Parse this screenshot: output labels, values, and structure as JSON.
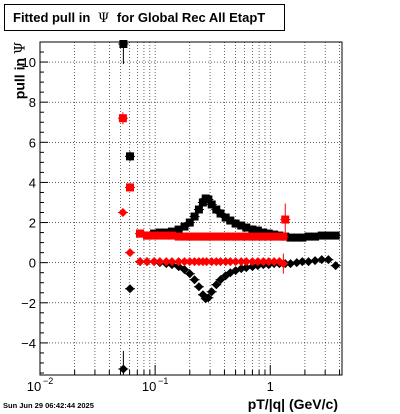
{
  "title": {
    "prefix": "Fitted pull in",
    "symbol": "Ψ",
    "suffix": "for Global Rec All EtapT"
  },
  "axes": {
    "ylabel_prefix": "pull in",
    "ylabel_symbol": "Ψ",
    "xlabel": "pT/|q| (GeV/c)"
  },
  "timestamp": "Sun Jun 29 06:42:44 2025",
  "colors": {
    "series_black": "#000000",
    "series_red": "#ff0000",
    "grid": "#000000"
  },
  "chart_data": {
    "type": "scatter",
    "xscale": "log",
    "xlim": [
      0.01,
      4.2
    ],
    "ylim": [
      -5.6,
      11.0
    ],
    "grid": true,
    "ytick_labels": [
      "−4",
      "−2",
      "0",
      "2",
      "4",
      "6",
      "8",
      "10"
    ],
    "ytick_values": [
      -4,
      -2,
      0,
      2,
      4,
      6,
      8,
      10
    ],
    "xtick_labels": [
      {
        "base": "10",
        "exp": "−2",
        "value": 0.01
      },
      {
        "base": "10",
        "exp": "−1",
        "value": 0.1
      },
      {
        "base": "1",
        "exp": "",
        "value": 1
      }
    ],
    "series": [
      {
        "color": "#000000",
        "marker": "square",
        "points": [
          [
            0.053,
            10.9,
            1.0
          ],
          [
            0.0605,
            5.3,
            0.25
          ],
          [
            0.074,
            1.45,
            0.15
          ],
          [
            0.085,
            1.35,
            0.1
          ],
          [
            0.098,
            1.45,
            0.08
          ],
          [
            0.11,
            1.5,
            0.07
          ],
          [
            0.125,
            1.5,
            0.06
          ],
          [
            0.14,
            1.55,
            0.06
          ],
          [
            0.16,
            1.65,
            0.06
          ],
          [
            0.18,
            1.8,
            0.06
          ],
          [
            0.2,
            2.0,
            0.07
          ],
          [
            0.22,
            2.3,
            0.08
          ],
          [
            0.24,
            2.65,
            0.09
          ],
          [
            0.26,
            3.0,
            0.1
          ],
          [
            0.275,
            3.2,
            0.12
          ],
          [
            0.29,
            3.15,
            0.12
          ],
          [
            0.31,
            2.9,
            0.1
          ],
          [
            0.34,
            2.65,
            0.08
          ],
          [
            0.37,
            2.45,
            0.07
          ],
          [
            0.41,
            2.25,
            0.06
          ],
          [
            0.45,
            2.1,
            0.05
          ],
          [
            0.5,
            1.95,
            0.05
          ],
          [
            0.56,
            1.85,
            0.05
          ],
          [
            0.62,
            1.75,
            0.05
          ],
          [
            0.7,
            1.65,
            0.05
          ],
          [
            0.78,
            1.6,
            0.05
          ],
          [
            0.87,
            1.5,
            0.05
          ],
          [
            0.97,
            1.45,
            0.05
          ],
          [
            1.08,
            1.4,
            0.05
          ],
          [
            1.2,
            1.35,
            0.06
          ],
          [
            1.35,
            1.3,
            0.07
          ],
          [
            1.5,
            1.25,
            0.08
          ],
          [
            1.7,
            1.25,
            0.09
          ],
          [
            1.9,
            1.25,
            0.1
          ],
          [
            2.15,
            1.3,
            0.1
          ],
          [
            2.45,
            1.3,
            0.11
          ],
          [
            2.8,
            1.35,
            0.12
          ],
          [
            3.2,
            1.35,
            0.12
          ],
          [
            3.7,
            1.35,
            0.13
          ]
        ]
      },
      {
        "color": "#ff0000",
        "marker": "square",
        "points": [
          [
            0.0525,
            7.2,
            0.3
          ],
          [
            0.0605,
            3.75,
            0.15
          ],
          [
            0.074,
            1.45,
            0.1
          ],
          [
            0.085,
            1.35,
            0.08
          ],
          [
            0.098,
            1.35,
            0.06
          ],
          [
            0.11,
            1.35,
            0.05
          ],
          [
            0.125,
            1.35,
            0.05
          ],
          [
            0.14,
            1.35,
            0.05
          ],
          [
            0.16,
            1.3,
            0.05
          ],
          [
            0.18,
            1.3,
            0.05
          ],
          [
            0.2,
            1.3,
            0.05
          ],
          [
            0.22,
            1.3,
            0.05
          ],
          [
            0.24,
            1.3,
            0.05
          ],
          [
            0.26,
            1.3,
            0.05
          ],
          [
            0.28,
            1.3,
            0.05
          ],
          [
            0.31,
            1.3,
            0.05
          ],
          [
            0.34,
            1.3,
            0.05
          ],
          [
            0.37,
            1.3,
            0.05
          ],
          [
            0.41,
            1.3,
            0.05
          ],
          [
            0.45,
            1.3,
            0.05
          ],
          [
            0.5,
            1.3,
            0.05
          ],
          [
            0.56,
            1.3,
            0.05
          ],
          [
            0.62,
            1.3,
            0.05
          ],
          [
            0.7,
            1.3,
            0.05
          ],
          [
            0.78,
            1.3,
            0.05
          ],
          [
            0.87,
            1.3,
            0.05
          ],
          [
            0.97,
            1.3,
            0.05
          ],
          [
            1.08,
            1.3,
            0.06
          ],
          [
            1.2,
            1.3,
            0.08
          ],
          [
            1.3,
            1.3,
            0.15
          ],
          [
            1.35,
            2.15,
            0.8
          ]
        ]
      },
      {
        "color": "#000000",
        "marker": "diamond",
        "points": [
          [
            0.053,
            -5.3,
            0.9
          ],
          [
            0.0605,
            -1.3,
            0.15
          ],
          [
            0.074,
            0.05,
            0.1
          ],
          [
            0.085,
            0.05,
            0.08
          ],
          [
            0.098,
            0.05,
            0.06
          ],
          [
            0.11,
            0.0,
            0.05
          ],
          [
            0.125,
            -0.05,
            0.05
          ],
          [
            0.14,
            -0.1,
            0.05
          ],
          [
            0.16,
            -0.2,
            0.05
          ],
          [
            0.18,
            -0.35,
            0.05
          ],
          [
            0.2,
            -0.55,
            0.06
          ],
          [
            0.22,
            -0.85,
            0.07
          ],
          [
            0.24,
            -1.2,
            0.08
          ],
          [
            0.26,
            -1.6,
            0.1
          ],
          [
            0.275,
            -1.8,
            0.12
          ],
          [
            0.29,
            -1.75,
            0.12
          ],
          [
            0.31,
            -1.45,
            0.1
          ],
          [
            0.34,
            -1.1,
            0.08
          ],
          [
            0.37,
            -0.85,
            0.07
          ],
          [
            0.41,
            -0.65,
            0.06
          ],
          [
            0.45,
            -0.5,
            0.05
          ],
          [
            0.5,
            -0.4,
            0.05
          ],
          [
            0.56,
            -0.3,
            0.05
          ],
          [
            0.62,
            -0.25,
            0.05
          ],
          [
            0.7,
            -0.2,
            0.05
          ],
          [
            0.78,
            -0.15,
            0.05
          ],
          [
            0.87,
            -0.1,
            0.05
          ],
          [
            0.97,
            -0.1,
            0.05
          ],
          [
            1.08,
            -0.05,
            0.05
          ],
          [
            1.2,
            -0.05,
            0.05
          ],
          [
            1.35,
            -0.05,
            0.06
          ],
          [
            1.5,
            -0.05,
            0.06
          ],
          [
            1.7,
            0.0,
            0.07
          ],
          [
            1.9,
            0.05,
            0.08
          ],
          [
            2.15,
            0.05,
            0.08
          ],
          [
            2.45,
            0.1,
            0.09
          ],
          [
            2.8,
            0.15,
            0.1
          ],
          [
            3.2,
            0.15,
            0.1
          ],
          [
            3.7,
            -0.15,
            0.15
          ]
        ]
      },
      {
        "color": "#ff0000",
        "marker": "diamond",
        "points": [
          [
            0.0525,
            2.5,
            0.2
          ],
          [
            0.0605,
            0.5,
            0.1
          ],
          [
            0.074,
            0.05,
            0.08
          ],
          [
            0.085,
            0.05,
            0.06
          ],
          [
            0.098,
            0.05,
            0.05
          ],
          [
            0.11,
            0.05,
            0.05
          ],
          [
            0.125,
            0.05,
            0.05
          ],
          [
            0.14,
            0.05,
            0.05
          ],
          [
            0.16,
            0.05,
            0.05
          ],
          [
            0.18,
            0.05,
            0.05
          ],
          [
            0.2,
            0.05,
            0.05
          ],
          [
            0.22,
            0.05,
            0.05
          ],
          [
            0.24,
            0.05,
            0.05
          ],
          [
            0.26,
            0.05,
            0.05
          ],
          [
            0.28,
            0.05,
            0.05
          ],
          [
            0.31,
            0.05,
            0.05
          ],
          [
            0.34,
            0.05,
            0.05
          ],
          [
            0.37,
            0.05,
            0.05
          ],
          [
            0.41,
            0.05,
            0.05
          ],
          [
            0.45,
            0.05,
            0.05
          ],
          [
            0.5,
            0.05,
            0.05
          ],
          [
            0.56,
            0.05,
            0.05
          ],
          [
            0.62,
            0.05,
            0.05
          ],
          [
            0.7,
            0.05,
            0.05
          ],
          [
            0.78,
            0.05,
            0.05
          ],
          [
            0.87,
            0.05,
            0.05
          ],
          [
            0.97,
            0.05,
            0.05
          ],
          [
            1.08,
            0.05,
            0.05
          ],
          [
            1.2,
            0.05,
            0.06
          ],
          [
            1.3,
            -0.05,
            0.5
          ]
        ]
      }
    ]
  }
}
